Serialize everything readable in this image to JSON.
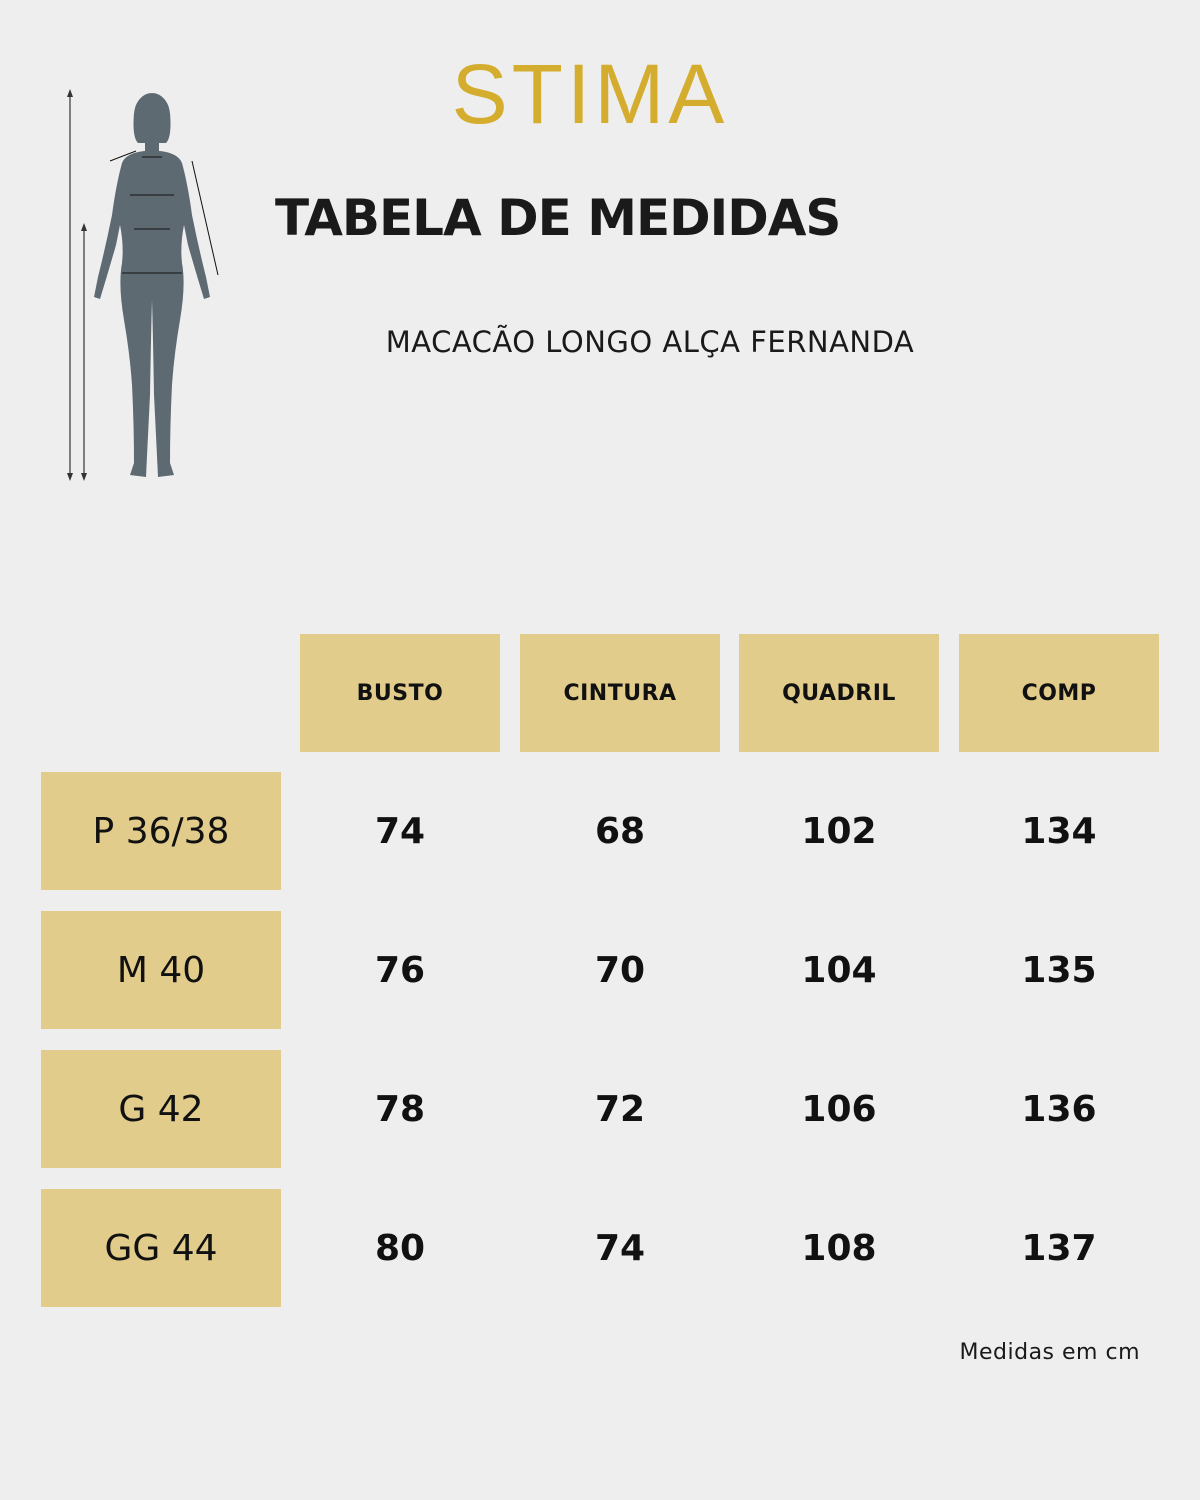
{
  "brand": {
    "logo_text": "STIMA",
    "accent_color": "#d4ad2e",
    "cell_color": "#e2cc8b"
  },
  "title": "TABELA DE MEDIDAS",
  "product_name": "MACACÃO LONGO ALÇA FERNANDA",
  "table": {
    "columns": [
      "BUSTO",
      "CINTURA",
      "QUADRIL",
      "COMP"
    ],
    "rows": [
      {
        "size": "P 36/38",
        "values": [
          "74",
          "68",
          "102",
          "134"
        ]
      },
      {
        "size": "M 40",
        "values": [
          "76",
          "70",
          "104",
          "135"
        ]
      },
      {
        "size": "G 42",
        "values": [
          "78",
          "72",
          "106",
          "136"
        ]
      },
      {
        "size": "GG 44",
        "values": [
          "80",
          "74",
          "108",
          "137"
        ]
      }
    ]
  },
  "footnote": "Medidas em cm",
  "icons": {
    "figure": "body-measurement-figure-icon"
  }
}
